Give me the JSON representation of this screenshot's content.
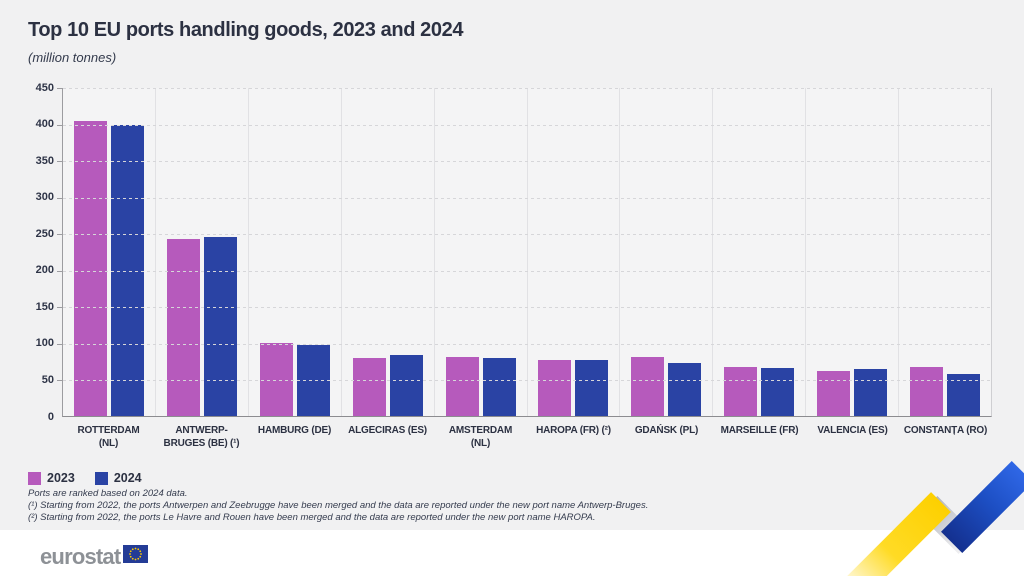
{
  "chart_data": {
    "type": "bar",
    "title": "Top 10 EU ports handling goods, 2023 and 2024",
    "subtitle": "(million tonnes)",
    "categories": [
      "ROTTERDAM\n(NL)",
      "ANTWERP-\nBRUGES (BE) (¹)",
      "HAMBURG (DE)",
      "ALGECIRAS (ES)",
      "AMSTERDAM\n(NL)",
      "HAROPA (FR) (²)",
      "GDAŃSK (PL)",
      "MARSEILLE (FR)",
      "VALENCIA (ES)",
      "CONSTANȚA (RO)"
    ],
    "series": [
      {
        "name": "2023",
        "color": "#b65abc",
        "values": [
          404,
          242,
          100,
          80,
          81,
          76,
          81,
          67,
          62,
          67
        ]
      },
      {
        "name": "2024",
        "color": "#2a43a4",
        "values": [
          398,
          245,
          97,
          83,
          79,
          77,
          72,
          66,
          64,
          58
        ]
      }
    ],
    "ylim": [
      0,
      450
    ],
    "yticks": [
      0,
      50,
      100,
      150,
      200,
      250,
      300,
      350,
      400,
      450
    ],
    "grid": "horizontal-dashed",
    "legend_position": "bottom-left"
  },
  "footnotes": {
    "lines": [
      "Ports are ranked based on 2024 data.",
      "(¹) Starting from 2022, the ports Antwerpen and Zeebrugge have been merged and the data are reported under the new port name Antwerp-Bruges.",
      "(²) Starting from 2022, the ports Le Havre and Rouen have been merged and the data are reported under the new port name HAROPA."
    ]
  },
  "branding": {
    "logo_text": "eurostat",
    "flag_icon": "eu-flag-icon"
  },
  "colors": {
    "series_2023": "#b65abc",
    "series_2024": "#2a43a4",
    "background": "#f1f1f2",
    "plot_background": "#f4f4f5",
    "text": "#2c3142",
    "ribbon_yellow": "#fdd000",
    "ribbon_blue": "#1d4fc4",
    "logo_gray": "#8d9196",
    "flag_blue": "#243c96",
    "flag_stars": "#ffcc00"
  }
}
